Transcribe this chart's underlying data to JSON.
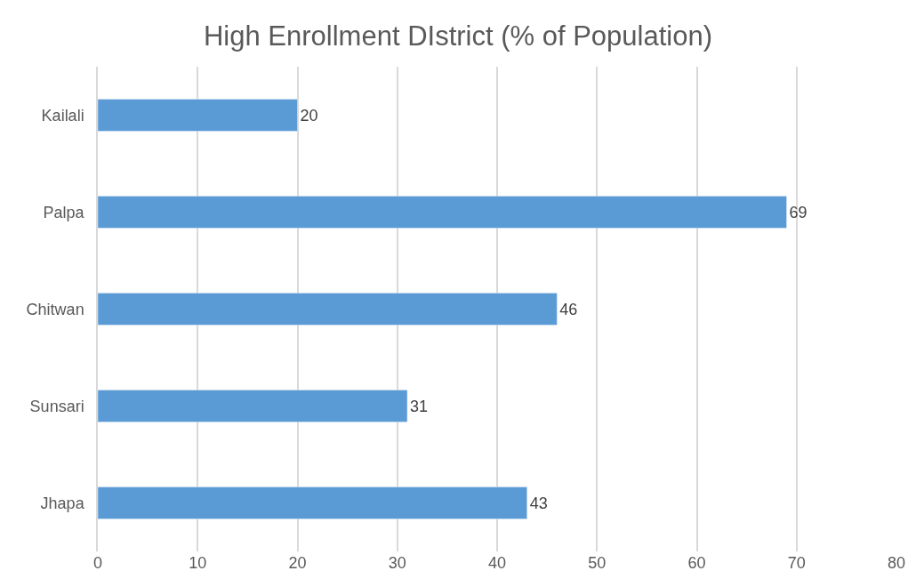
{
  "chart_data": {
    "type": "bar",
    "orientation": "horizontal",
    "title": "High Enrollment DIstrict (% of Population)",
    "categories": [
      "Kailali",
      "Palpa",
      "Chitwan",
      "Sunsari",
      "Jhapa"
    ],
    "values": [
      20,
      69,
      46,
      31,
      43
    ],
    "color": "#5b9bd5",
    "xlim": [
      0,
      80
    ],
    "xticks": [
      0,
      10,
      20,
      30,
      40,
      50,
      60,
      70,
      80
    ],
    "grid": "x",
    "data_labels": true,
    "legend": false
  }
}
